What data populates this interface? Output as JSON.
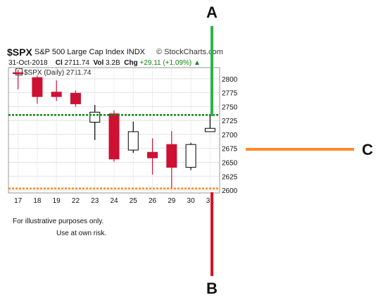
{
  "header": {
    "symbol": "$SPX",
    "name": "S&P 500 Large Cap Index",
    "exchange": "INDX",
    "source": "© StockCharts.com",
    "date": "31-Oct-2018",
    "close_label": "Cl",
    "close": "2711.74",
    "vol_label": "Vol",
    "volume": "3.2B",
    "chg_label": "Chg",
    "change": "+29.11 (+1.09%)",
    "change_arrow": "▲"
  },
  "legend": "$SPX (Daily) 2711.74",
  "annotations": {
    "a": "A",
    "b": "B",
    "c": "C"
  },
  "notes": {
    "line1": "For illustrative purposes only.",
    "line2": "Use at own risk."
  },
  "colors": {
    "down": "#cc1133",
    "up_fill": "#ffffff",
    "up_stroke": "#000000",
    "green_line": "#118811",
    "orange_line": "#ff8c1a",
    "arrow_green": "#2db34a",
    "arrow_red": "#dd1122",
    "arrow_orange": "#ff8c2a"
  },
  "chart_data": {
    "type": "candlestick",
    "categories": [
      "17",
      "18",
      "19",
      "22",
      "23",
      "24",
      "25",
      "26",
      "29",
      "30",
      "31"
    ],
    "candles": [
      {
        "x": "17",
        "open": 2811,
        "high": 2816,
        "low": 2781,
        "close": 2809
      },
      {
        "x": "18",
        "open": 2802,
        "high": 2806,
        "low": 2755,
        "close": 2768
      },
      {
        "x": "19",
        "open": 2776,
        "high": 2797,
        "low": 2760,
        "close": 2768
      },
      {
        "x": "22",
        "open": 2774,
        "high": 2779,
        "low": 2750,
        "close": 2755
      },
      {
        "x": "23",
        "open": 2722,
        "high": 2753,
        "low": 2690,
        "close": 2740
      },
      {
        "x": "24",
        "open": 2737,
        "high": 2743,
        "low": 2651,
        "close": 2656
      },
      {
        "x": "25",
        "open": 2672,
        "high": 2723,
        "low": 2667,
        "close": 2705
      },
      {
        "x": "26",
        "open": 2668,
        "high": 2693,
        "low": 2628,
        "close": 2658
      },
      {
        "x": "29",
        "open": 2682,
        "high": 2706,
        "low": 2603,
        "close": 2641
      },
      {
        "x": "30",
        "open": 2641,
        "high": 2685,
        "low": 2636,
        "close": 2682
      },
      {
        "x": "31",
        "open": 2705,
        "high": 2737,
        "low": 2705,
        "close": 2711
      }
    ],
    "yticks": [
      2600,
      2625,
      2650,
      2675,
      2700,
      2725,
      2750,
      2775,
      2800
    ],
    "ylim": [
      2595,
      2820
    ],
    "levels": [
      {
        "name": "upper-level",
        "value": 2735,
        "color": "#118811"
      },
      {
        "name": "lower-level",
        "value": 2603,
        "color": "#ff8c1a"
      }
    ]
  }
}
